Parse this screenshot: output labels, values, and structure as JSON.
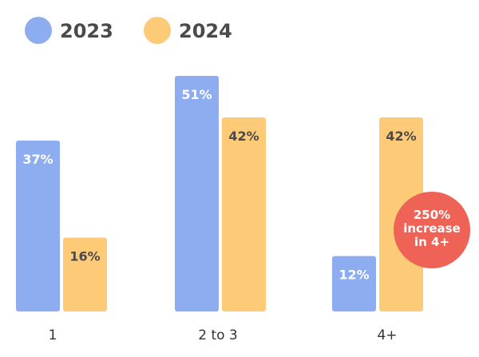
{
  "chart_data": {
    "type": "bar",
    "title": "",
    "xlabel": "",
    "ylabel": "",
    "categories": [
      "1",
      "2 to 3",
      "4+"
    ],
    "series": [
      {
        "name": "2023",
        "values": [
          37,
          51,
          12
        ],
        "color": "#8eadf0"
      },
      {
        "name": "2024",
        "values": [
          16,
          42,
          42
        ],
        "color": "#fdcb77"
      }
    ],
    "value_suffix": "%",
    "ylim": [
      0,
      51
    ],
    "grid": false,
    "legend_position": "top-left",
    "annotation": {
      "lines": [
        "250%",
        "increase",
        "in 4+"
      ],
      "color": "#ef6256",
      "category": "4+"
    }
  },
  "colors": {
    "value_label_on_2023": "#ffffff",
    "value_label_on_2024": "#4a4a4a",
    "axis_label": "#333333",
    "legend_text": "#4a4a4a",
    "annotation_text": "#ffffff"
  }
}
